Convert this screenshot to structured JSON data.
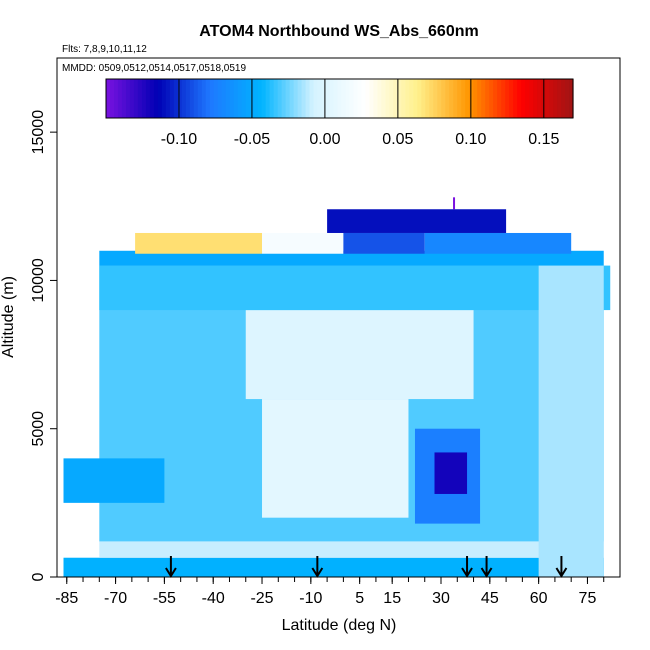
{
  "chart_data": {
    "type": "heatmap",
    "title": "ATOM4 Northbound WS_Abs_660nm",
    "subtitle_flights": "Flts: 7,8,9,10,11,12",
    "subtitle_dates": "MMDD: 0509,0512,0514,0517,0518,0519",
    "xlabel": "Latitude (deg N)",
    "ylabel": "Altitude (m)",
    "xlim": [
      -88,
      85
    ],
    "ylim": [
      0,
      17500
    ],
    "x_ticks": [
      -85,
      -70,
      -55,
      -40,
      -25,
      -10,
      5,
      15,
      30,
      45,
      60,
      75
    ],
    "x_tick_labels": [
      "-85",
      "-70",
      "-55",
      "-40",
      "-25",
      "-10",
      "5",
      "15",
      "30",
      "45",
      "60",
      "75"
    ],
    "y_ticks": [
      0,
      5000,
      10000,
      15000
    ],
    "y_tick_labels": [
      "0",
      "5000",
      "10000",
      "15000"
    ],
    "colorbar": {
      "range": [
        -0.15,
        0.17
      ],
      "ticks": [
        -0.1,
        -0.05,
        0.0,
        0.05,
        0.1,
        0.15
      ],
      "tick_labels": [
        "-0.10",
        "-0.05",
        "0.00",
        "0.05",
        "0.10",
        "0.15"
      ],
      "colors": [
        "#7a12e0",
        "#0000b4",
        "#1e78ff",
        "#00b4ff",
        "#d4f2ff",
        "#ffffff",
        "#fff08c",
        "#ff9600",
        "#ff0000",
        "#a01414"
      ]
    },
    "cell_bands": [
      {
        "lat": [
          -86,
          80
        ],
        "alt": [
          0,
          650
        ],
        "value": -0.045
      },
      {
        "lat": [
          -75,
          80
        ],
        "alt": [
          650,
          1200
        ],
        "value": -0.01
      },
      {
        "lat": [
          -75,
          80
        ],
        "alt": [
          1200,
          10500
        ],
        "value": -0.03
      },
      {
        "lat": [
          -86,
          -55
        ],
        "alt": [
          2500,
          4000
        ],
        "value": -0.05
      },
      {
        "lat": [
          -30,
          40
        ],
        "alt": [
          6000,
          9000
        ],
        "value": 0.0
      },
      {
        "lat": [
          -25,
          20
        ],
        "alt": [
          2000,
          6000
        ],
        "value": 0.005
      },
      {
        "lat": [
          22,
          42
        ],
        "alt": [
          1800,
          5000
        ],
        "value": -0.075
      },
      {
        "lat": [
          28,
          38
        ],
        "alt": [
          2800,
          4200
        ],
        "value": -0.12
      },
      {
        "lat": [
          -75,
          82
        ],
        "alt": [
          9000,
          10500
        ],
        "value": -0.035
      },
      {
        "lat": [
          -75,
          80
        ],
        "alt": [
          10500,
          11000
        ],
        "value": -0.05
      },
      {
        "lat": [
          -64,
          -25
        ],
        "alt": [
          10900,
          11600
        ],
        "value": 0.07
      },
      {
        "lat": [
          -25,
          0
        ],
        "alt": [
          10900,
          11600
        ],
        "value": 0.02
      },
      {
        "lat": [
          0,
          25
        ],
        "alt": [
          10900,
          11600
        ],
        "value": -0.09
      },
      {
        "lat": [
          25,
          70
        ],
        "alt": [
          10900,
          11600
        ],
        "value": -0.07
      },
      {
        "lat": [
          -5,
          50
        ],
        "alt": [
          11600,
          12400
        ],
        "value": -0.11
      },
      {
        "lat": [
          60,
          80
        ],
        "alt": [
          0,
          10500
        ],
        "value": -0.015
      }
    ],
    "highlight_point": {
      "lat": 34,
      "alt": 12600,
      "value": -0.15
    },
    "arrow_latitudes": [
      -53,
      -8,
      38,
      44,
      67
    ]
  }
}
